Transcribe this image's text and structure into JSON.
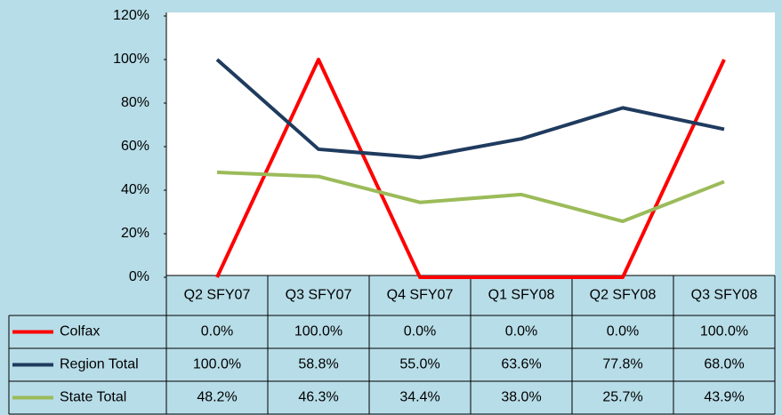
{
  "chart_data": {
    "type": "line",
    "categories": [
      "Q2 SFY07",
      "Q3 SFY07",
      "Q4 SFY07",
      "Q1 SFY08",
      "Q2 SFY08",
      "Q3 SFY08"
    ],
    "series": [
      {
        "name": "Colfax",
        "color": "#ff0000",
        "values": [
          0,
          100,
          0,
          0,
          0,
          100
        ],
        "value_labels": [
          "0.0%",
          "100.0%",
          "0.0%",
          "0.0%",
          "0.0%",
          "100.0%"
        ]
      },
      {
        "name": "Region Total",
        "color": "#1f3b5e",
        "values": [
          100,
          58.8,
          55,
          63.6,
          77.8,
          68
        ],
        "value_labels": [
          "100.0%",
          "58.8%",
          "55.0%",
          "63.6%",
          "77.8%",
          "68.0%"
        ]
      },
      {
        "name": "State Total",
        "color": "#9bbb59",
        "values": [
          48.2,
          46.3,
          34.4,
          38,
          25.7,
          43.9
        ],
        "value_labels": [
          "48.2%",
          "46.3%",
          "34.4%",
          "38.0%",
          "25.7%",
          "43.9%"
        ]
      }
    ],
    "ylim": [
      0,
      120
    ],
    "yticks": [
      {
        "value": 0,
        "label": "0%"
      },
      {
        "value": 20,
        "label": "20%"
      },
      {
        "value": 40,
        "label": "40%"
      },
      {
        "value": 60,
        "label": "60%"
      },
      {
        "value": 80,
        "label": "80%"
      },
      {
        "value": 100,
        "label": "100%"
      },
      {
        "value": 120,
        "label": "120%"
      }
    ],
    "grid": false
  }
}
